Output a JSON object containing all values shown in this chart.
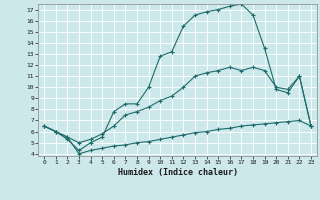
{
  "title": "",
  "xlabel": "Humidex (Indice chaleur)",
  "xlim": [
    -0.5,
    23.5
  ],
  "ylim": [
    3.8,
    17.5
  ],
  "yticks": [
    4,
    5,
    6,
    7,
    8,
    9,
    10,
    11,
    12,
    13,
    14,
    15,
    16,
    17
  ],
  "xticks": [
    0,
    1,
    2,
    3,
    4,
    5,
    6,
    7,
    8,
    9,
    10,
    11,
    12,
    13,
    14,
    15,
    16,
    17,
    18,
    19,
    20,
    21,
    22,
    23
  ],
  "background_color": "#cde8ea",
  "grid_color": "#ffffff",
  "line_color": "#1e6b6b",
  "line1_x": [
    0,
    1,
    2,
    3,
    4,
    5,
    6,
    7,
    8,
    9,
    10,
    11,
    12,
    13,
    14,
    15,
    16,
    17,
    18,
    19,
    20,
    21,
    22,
    23
  ],
  "line1_y": [
    6.5,
    6.0,
    5.3,
    4.3,
    5.0,
    5.5,
    7.8,
    8.5,
    8.5,
    10.0,
    12.8,
    13.2,
    15.5,
    16.5,
    16.8,
    17.0,
    17.3,
    17.5,
    16.5,
    13.5,
    9.8,
    9.5,
    11.0,
    6.5
  ],
  "line2_x": [
    0,
    1,
    2,
    3,
    4,
    5,
    6,
    7,
    8,
    9,
    10,
    11,
    12,
    13,
    14,
    15,
    16,
    17,
    18,
    19,
    20,
    21,
    22,
    23
  ],
  "line2_y": [
    6.5,
    6.0,
    5.5,
    5.0,
    5.3,
    5.8,
    6.5,
    7.5,
    7.8,
    8.2,
    8.8,
    9.2,
    10.0,
    11.0,
    11.3,
    11.5,
    11.8,
    11.5,
    11.8,
    11.5,
    10.0,
    9.8,
    11.0,
    6.5
  ],
  "line3_x": [
    0,
    1,
    2,
    3,
    4,
    5,
    6,
    7,
    8,
    9,
    10,
    11,
    12,
    13,
    14,
    15,
    16,
    17,
    18,
    19,
    20,
    21,
    22,
    23
  ],
  "line3_y": [
    6.5,
    6.0,
    5.5,
    4.0,
    4.3,
    4.5,
    4.7,
    4.8,
    5.0,
    5.1,
    5.3,
    5.5,
    5.7,
    5.9,
    6.0,
    6.2,
    6.3,
    6.5,
    6.6,
    6.7,
    6.8,
    6.9,
    7.0,
    6.5
  ]
}
